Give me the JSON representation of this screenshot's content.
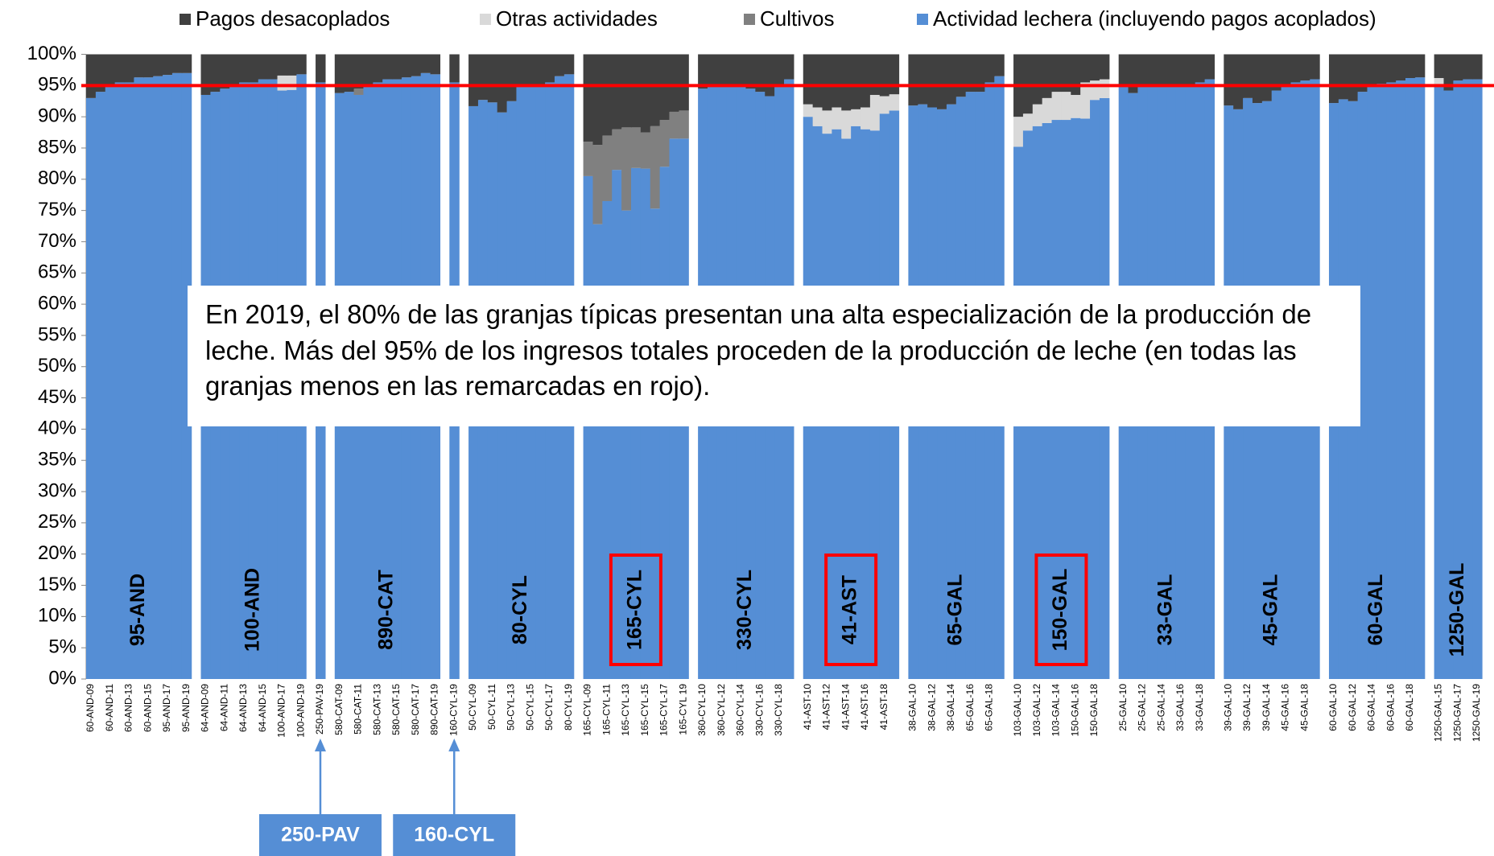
{
  "chart_data": {
    "type": "stacked_bar",
    "annotation": "En 2019, el 80% de las granjas típicas presentan una alta especialización de la producción de leche. Más del 95% de los ingresos totales proceden de la producción de leche (en todas las granjas menos en las remarcadas en rojo).",
    "ylim": [
      0,
      100
    ],
    "yticks": [
      {
        "value": 0,
        "label": "0%"
      },
      {
        "value": 5,
        "label": "5%"
      },
      {
        "value": 10,
        "label": "10%"
      },
      {
        "value": 15,
        "label": "15%"
      },
      {
        "value": 20,
        "label": "20%"
      },
      {
        "value": 25,
        "label": "25%"
      },
      {
        "value": 30,
        "label": "30%"
      },
      {
        "value": 35,
        "label": "35%"
      },
      {
        "value": 40,
        "label": "40%"
      },
      {
        "value": 45,
        "label": "45%"
      },
      {
        "value": 50,
        "label": "50%"
      },
      {
        "value": 55,
        "label": "55%"
      },
      {
        "value": 60,
        "label": "60%"
      },
      {
        "value": 65,
        "label": "65%"
      },
      {
        "value": 70,
        "label": "70%"
      },
      {
        "value": 75,
        "label": "75%"
      },
      {
        "value": 80,
        "label": "80%"
      },
      {
        "value": 85,
        "label": "85%"
      },
      {
        "value": 90,
        "label": "90%"
      },
      {
        "value": 95,
        "label": "95%"
      },
      {
        "value": 100,
        "label": "100%"
      }
    ],
    "reference_line": {
      "value": 95,
      "color": "#ff0000"
    },
    "highlight_color": "#ff0000",
    "categories": [
      "60-AND-09",
      null,
      "60-AND-11",
      null,
      "60-AND-13",
      null,
      "60-AND-15",
      null,
      "95-AND-17",
      null,
      "95-AND-19",
      null,
      "64-AND-09",
      null,
      "64-AND-11",
      null,
      "64-AND-13",
      null,
      "64-AND-15",
      null,
      "100-AND-17",
      null,
      "100-AND-19",
      null,
      "250-PAV-19",
      null,
      "580-CAT-09",
      null,
      "580-CAT-11",
      null,
      "580-CAT-13",
      null,
      "580-CAT-15",
      null,
      "580-CAT-17",
      null,
      "890-CAT-19",
      null,
      "160-CYL-19",
      null,
      "50-CYL-09",
      null,
      "50-CYL-11",
      null,
      "50-CYL-13",
      null,
      "50-CYL-15",
      null,
      "50-CYL-17",
      null,
      "80-CYL-19",
      null,
      "165-CYL-09",
      null,
      "165-CYL-11",
      null,
      "165-CYL-13",
      null,
      "165-CYL-15",
      null,
      "165-CYL-17",
      null,
      "165-CYL 19",
      null,
      "360-CYL-10",
      null,
      "360-CYL-12",
      null,
      "360-CYL-14",
      null,
      "330-CYL-16",
      null,
      "330-CYL-18",
      null,
      null,
      "41-AST-10",
      null,
      "41-AST-12",
      null,
      "41-AST-14",
      null,
      "41-AST-16",
      null,
      "41-AST-18",
      null,
      null,
      "38-GAL-10",
      null,
      "38-GAL-12",
      null,
      "38-GAL-14",
      null,
      "65-GAL-16",
      null,
      "65-GAL-18",
      null,
      null,
      "103-GAL-10",
      null,
      "103-GAL-12",
      null,
      "103-GAL-14",
      null,
      "150-GAL-16",
      null,
      "150-GAL-18",
      null,
      null,
      "25-GAL-10",
      null,
      "25-GAL-12",
      null,
      "25-GAL-14",
      null,
      "33-GAL-16",
      null,
      "33-GAL-18",
      null,
      null,
      "39-GAL-10",
      null,
      "39-GAL-12",
      null,
      "39-GAL-14",
      null,
      "45-GAL-16",
      null,
      "45-GAL-18",
      null,
      null,
      "60-GAL-10",
      null,
      "60-GAL-12",
      null,
      "60-GAL-14",
      null,
      "60-GAL-16",
      null,
      "60-GAL-18",
      null,
      null,
      "1250-GAL-15",
      null,
      "1250-GAL-17",
      null,
      "1250-GAL-19"
    ],
    "series": [
      {
        "name": "Pagos desacoplados",
        "color": "#404040",
        "values": [
          7,
          6,
          5,
          4.5,
          4.5,
          3.7,
          3.7,
          3.5,
          3.3,
          3,
          3,
          null,
          6.5,
          6,
          5.5,
          5,
          4.5,
          4.5,
          4,
          4,
          3.4,
          3.4,
          3.2,
          null,
          4.5,
          null,
          6.2,
          6,
          5.5,
          5,
          4.5,
          4,
          4,
          3.7,
          3.5,
          3,
          3.2,
          null,
          4.5,
          null,
          8.3,
          7.3,
          7.7,
          9.3,
          7.5,
          5.2,
          5,
          5,
          4.5,
          3.5,
          3.2,
          null,
          14,
          14.5,
          13,
          12,
          11.7,
          11.7,
          12.5,
          11.5,
          10.5,
          9.2,
          9,
          null,
          5.5,
          5,
          5,
          4.8,
          5,
          5.5,
          6,
          6.7,
          5,
          4,
          null,
          8,
          8.5,
          9,
          8.5,
          9,
          8.8,
          8.5,
          6.5,
          6.7,
          6.4,
          null,
          8.2,
          8,
          8.5,
          8.8,
          8,
          6.8,
          6,
          6,
          4.5,
          3.5,
          null,
          10,
          9.5,
          8,
          7,
          6,
          6,
          6.5,
          4.5,
          4.2,
          4,
          null,
          5,
          6.2,
          5.2,
          5,
          5,
          5,
          4.8,
          5,
          4.5,
          4,
          null,
          8.2,
          8.8,
          7,
          7.8,
          7.5,
          5.8,
          5,
          4.5,
          4.2,
          4,
          null,
          7.8,
          7.2,
          7.5,
          6,
          4.8,
          4.7,
          4.5,
          4.2,
          3.8,
          3.7,
          null,
          3.8,
          5.8,
          4.2,
          4,
          4
        ]
      },
      {
        "name": "Otras actividades",
        "color": "#d9d9d9",
        "values": [
          0,
          0,
          0,
          0,
          0,
          0,
          0,
          0,
          0,
          0,
          0,
          null,
          0,
          0,
          0,
          0,
          0,
          0,
          0,
          0,
          2.4,
          2.3,
          0,
          null,
          0,
          null,
          0,
          0,
          0,
          0,
          0,
          0,
          0,
          0,
          0,
          0,
          0,
          null,
          0,
          null,
          0,
          0,
          0,
          0,
          0,
          0,
          0,
          0,
          0,
          0,
          0,
          null,
          0,
          0,
          0,
          0,
          0,
          0,
          0,
          0,
          0,
          0,
          0,
          null,
          0,
          0,
          0,
          0,
          0,
          0,
          0,
          0,
          0,
          0,
          null,
          2,
          3,
          3.7,
          3.5,
          4.5,
          2.7,
          3.5,
          5.7,
          2.8,
          2.6,
          null,
          0,
          0,
          0,
          0,
          0,
          0,
          0,
          0,
          0,
          0,
          null,
          4.8,
          2.7,
          3.5,
          4,
          4.5,
          4.5,
          3.7,
          5.8,
          3.1,
          3,
          null,
          0,
          0,
          0,
          0,
          0,
          0,
          0,
          0,
          0,
          0,
          null,
          0,
          0,
          0,
          0,
          0,
          0,
          0,
          0,
          0,
          0,
          null,
          0,
          0,
          0,
          0,
          0,
          0,
          0,
          0,
          0,
          0,
          null,
          1.4,
          0,
          0,
          0,
          0
        ]
      },
      {
        "name": "Cultivos",
        "color": "#808080",
        "values": [
          0,
          0,
          0,
          0,
          0,
          0,
          0,
          0,
          0,
          0,
          0,
          null,
          0,
          0,
          0,
          0,
          0,
          0,
          0,
          0,
          0,
          0,
          0,
          null,
          0,
          null,
          0,
          0,
          1,
          0,
          0,
          0,
          0,
          0,
          0,
          0,
          0,
          null,
          0,
          null,
          0,
          0,
          0,
          0,
          0,
          0,
          0,
          0,
          0,
          0,
          0,
          null,
          5.5,
          12.7,
          10.5,
          6.5,
          13.3,
          6.5,
          5.8,
          13.2,
          7.5,
          4.3,
          4.5,
          null,
          0,
          0,
          0,
          0,
          0,
          0,
          0,
          0,
          0,
          0,
          null,
          0,
          0,
          0,
          0,
          0,
          0,
          0,
          0,
          0,
          0,
          null,
          0,
          0,
          0,
          0,
          0,
          0,
          0,
          0,
          0,
          0,
          null,
          0,
          0,
          0,
          0,
          0,
          0,
          0,
          0,
          0,
          0,
          null,
          0,
          0,
          0,
          0,
          0,
          0,
          0,
          0,
          0,
          0,
          null,
          0,
          0,
          0,
          0,
          0,
          0,
          0,
          0,
          0,
          0,
          null,
          0,
          0,
          0,
          0,
          0,
          0,
          0,
          0,
          0,
          0,
          null,
          0,
          0,
          0,
          0,
          0
        ]
      },
      {
        "name": "Actividad lechera (incluyendo pagos acoplados)",
        "color": "#558ed5",
        "values": [
          93,
          94,
          95,
          95.5,
          95.5,
          96.3,
          96.3,
          96.5,
          96.7,
          97,
          97,
          null,
          93.5,
          94,
          94.5,
          95,
          95.5,
          95.5,
          96,
          96,
          94.2,
          94.3,
          96.8,
          null,
          95.5,
          null,
          93.8,
          94,
          93.5,
          95,
          95.5,
          96,
          96,
          96.3,
          96.5,
          97,
          96.8,
          null,
          95.5,
          null,
          91.7,
          92.7,
          92.3,
          90.7,
          92.5,
          94.8,
          95,
          95,
          95.5,
          96.5,
          96.8,
          null,
          80.5,
          72.8,
          76.5,
          81.5,
          75,
          81.8,
          81.7,
          75.3,
          82,
          86.5,
          86.5,
          null,
          94.5,
          95,
          95,
          95.2,
          95,
          94.5,
          94,
          93.3,
          95,
          96,
          null,
          90,
          88.5,
          87.3,
          88,
          86.5,
          88.5,
          88,
          87.8,
          90.5,
          91,
          null,
          91.8,
          92,
          91.5,
          91.2,
          92,
          93.2,
          94,
          94,
          95.5,
          96.5,
          null,
          85.2,
          87.8,
          88.5,
          89,
          89.5,
          89.5,
          89.8,
          89.7,
          92.7,
          93,
          null,
          95,
          93.8,
          94.8,
          95,
          95,
          95,
          95.2,
          95,
          95.5,
          96,
          null,
          91.8,
          91.2,
          93,
          92.2,
          92.5,
          94.2,
          95,
          95.5,
          95.8,
          96,
          null,
          92.2,
          92.8,
          92.5,
          94,
          95.2,
          95.3,
          95.5,
          95.8,
          96.2,
          96.3,
          null,
          94.8,
          94.2,
          95.8,
          96,
          96
        ]
      }
    ],
    "groups": [
      {
        "label": "95-AND"
      },
      {
        "label": "100-AND"
      },
      {
        "label": ""
      },
      {
        "label": "890-CAT"
      },
      {
        "label": ""
      },
      {
        "label": "80-CYL"
      },
      {
        "label": "165-CYL",
        "highlight": true
      },
      {
        "label": "330-CYL"
      },
      {
        "label": "41-AST",
        "highlight": true
      },
      {
        "label": "65-GAL"
      },
      {
        "label": "150-GAL",
        "highlight": true
      },
      {
        "label": "33-GAL"
      },
      {
        "label": "45-GAL"
      },
      {
        "label": "60-GAL"
      },
      {
        "label": "1250-GAL"
      }
    ],
    "callouts": [
      {
        "label": "250-PAV",
        "target": "250-PAV-19",
        "color": "#558ed5"
      },
      {
        "label": "160-CYL",
        "target": "160-CYL-19",
        "color": "#558ed5"
      }
    ]
  }
}
